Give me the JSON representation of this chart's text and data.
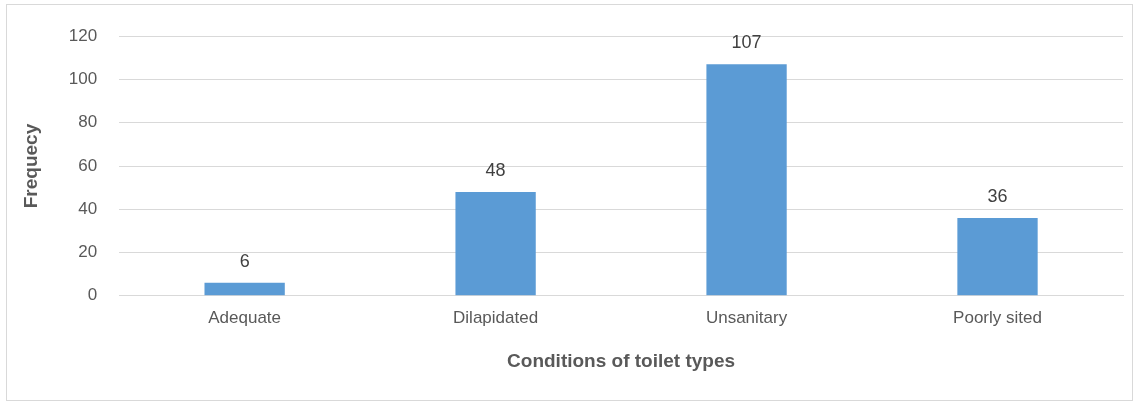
{
  "chart_data": {
    "type": "bar",
    "xlabel": "Conditions of toilet types",
    "ylabel": "Frequecy",
    "categories": [
      "Adequate",
      "Dilapidated",
      "Unsanitary",
      "Poorly sited"
    ],
    "values": [
      6,
      48,
      107,
      36
    ],
    "color": "#5b9bd5",
    "ylim": [
      0,
      120
    ],
    "yticks": [
      0,
      20,
      40,
      60,
      80,
      100,
      120
    ],
    "grid": "y",
    "data_labels": true,
    "legend": false
  }
}
